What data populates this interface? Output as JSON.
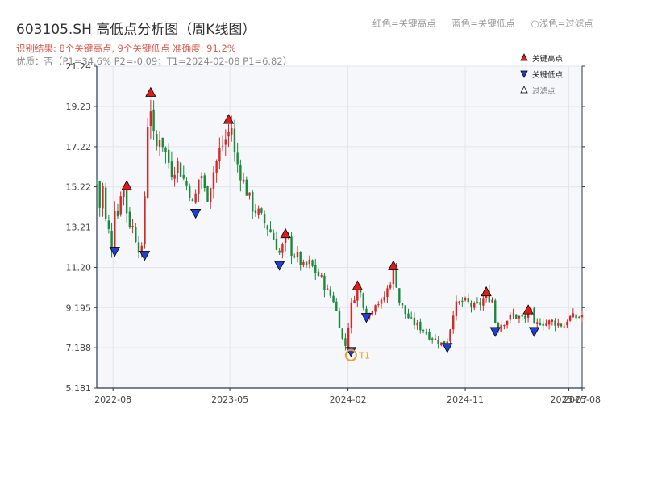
{
  "header": {
    "title": "603105.SH 高低点分析图（周K线图）",
    "summary": "识别结果: 8个关键高点, 9个关键低点   准确度: 91.2%",
    "quality": "优质：否（P1=34.6%  P2=-0.09；T1=2024-02-08 P1=6.82）",
    "legend_top": [
      "红色=关键高点",
      "蓝色=关键低点",
      "○浅色=过滤点"
    ]
  },
  "colors": {
    "up": "#d62728",
    "down": "#1a8a3a",
    "high_marker": "#e31a1c",
    "low_marker": "#1f3fd6",
    "t1": "#f0a020",
    "plot_bg": "#f5f7fa",
    "axis": "#2a3a4a"
  },
  "chart_data": {
    "type": "candlestick",
    "title": "603105.SH 高低点分析图（周K线图）",
    "x_range": [
      "2022-06-24",
      "2025-08-01"
    ],
    "ylim": [
      5.181,
      21.24
    ],
    "y_ticks": [
      "5.181",
      "7.188",
      "9.195",
      "11.20",
      "13.21",
      "15.22",
      "17.22",
      "19.23",
      "21.24"
    ],
    "x_ticks": [
      {
        "label": "2022-08",
        "date": "2022-08-01"
      },
      {
        "label": "2023-05",
        "date": "2023-05-01"
      },
      {
        "label": "2024-02",
        "date": "2024-02-01"
      },
      {
        "label": "2024-11",
        "date": "2024-11-01"
      },
      {
        "label": "2025-07",
        "date": "2025-07-01"
      },
      {
        "label": "2025-08",
        "date": "2025-08-01"
      }
    ],
    "anchors": [
      [
        "2022-06-24",
        15.5
      ],
      [
        "2022-07-01",
        14.2
      ],
      [
        "2022-07-08",
        15.2
      ],
      [
        "2022-07-15",
        13.5
      ],
      [
        "2022-07-22",
        13.0
      ],
      [
        "2022-07-29",
        12.3
      ],
      [
        "2022-08-05",
        14.3
      ],
      [
        "2022-08-12",
        13.8
      ],
      [
        "2022-08-19",
        15.0
      ],
      [
        "2022-08-26",
        15.1
      ],
      [
        "2022-09-02",
        14.0
      ],
      [
        "2022-09-09",
        13.4
      ],
      [
        "2022-09-16",
        13.2
      ],
      [
        "2022-09-23",
        12.7
      ],
      [
        "2022-09-30",
        12.2
      ],
      [
        "2022-10-07",
        12.0
      ],
      [
        "2022-10-14",
        14.8
      ],
      [
        "2022-10-21",
        18.4
      ],
      [
        "2022-10-28",
        19.2
      ],
      [
        "2022-11-04",
        17.6
      ],
      [
        "2022-11-11",
        17.2
      ],
      [
        "2022-11-18",
        17.8
      ],
      [
        "2022-11-25",
        17.4
      ],
      [
        "2022-12-02",
        16.9
      ],
      [
        "2022-12-16",
        16.0
      ],
      [
        "2022-12-30",
        16.4
      ],
      [
        "2023-01-13",
        15.6
      ],
      [
        "2023-01-27",
        15.0
      ],
      [
        "2023-02-03",
        14.3
      ],
      [
        "2023-02-10",
        14.8
      ],
      [
        "2023-02-17",
        15.6
      ],
      [
        "2023-02-24",
        15.8
      ],
      [
        "2023-03-03",
        15.0
      ],
      [
        "2023-03-10",
        14.8
      ],
      [
        "2023-03-24",
        16.0
      ],
      [
        "2023-04-07",
        17.0
      ],
      [
        "2023-04-21",
        17.6
      ],
      [
        "2023-05-05",
        18.2
      ],
      [
        "2023-05-12",
        16.8
      ],
      [
        "2023-05-26",
        15.9
      ],
      [
        "2023-06-09",
        15.0
      ],
      [
        "2023-06-23",
        14.2
      ],
      [
        "2023-07-07",
        13.9
      ],
      [
        "2023-07-21",
        13.4
      ],
      [
        "2023-08-04",
        13.0
      ],
      [
        "2023-08-18",
        12.3
      ],
      [
        "2023-08-25",
        11.9
      ],
      [
        "2023-09-01",
        12.2
      ],
      [
        "2023-09-08",
        12.7
      ],
      [
        "2023-09-15",
        12.5
      ],
      [
        "2023-09-22",
        12.0
      ],
      [
        "2023-10-06",
        11.7
      ],
      [
        "2023-10-20",
        11.2
      ],
      [
        "2023-11-03",
        11.4
      ],
      [
        "2023-11-17",
        11.0
      ],
      [
        "2023-12-01",
        10.6
      ],
      [
        "2023-12-15",
        10.0
      ],
      [
        "2023-12-29",
        9.6
      ],
      [
        "2024-01-05",
        9.0
      ],
      [
        "2024-01-12",
        8.4
      ],
      [
        "2024-01-19",
        7.6
      ],
      [
        "2024-01-26",
        7.3
      ],
      [
        "2024-02-02",
        8.3
      ],
      [
        "2024-02-09",
        9.3
      ],
      [
        "2024-02-16",
        9.8
      ],
      [
        "2024-02-23",
        10.1
      ],
      [
        "2024-03-01",
        9.9
      ],
      [
        "2024-03-08",
        9.4
      ],
      [
        "2024-03-15",
        8.8
      ],
      [
        "2024-03-22",
        8.9
      ],
      [
        "2024-03-29",
        9.2
      ],
      [
        "2024-04-05",
        9.5
      ],
      [
        "2024-04-19",
        9.4
      ],
      [
        "2024-05-03",
        10.1
      ],
      [
        "2024-05-17",
        11.0
      ],
      [
        "2024-05-24",
        10.4
      ],
      [
        "2024-05-31",
        9.5
      ],
      [
        "2024-06-14",
        8.9
      ],
      [
        "2024-06-28",
        8.5
      ],
      [
        "2024-07-12",
        8.3
      ],
      [
        "2024-07-26",
        8.1
      ],
      [
        "2024-08-09",
        7.8
      ],
      [
        "2024-08-23",
        7.6
      ],
      [
        "2024-09-06",
        7.4
      ],
      [
        "2024-09-20",
        7.6
      ],
      [
        "2024-09-27",
        8.2
      ],
      [
        "2024-10-04",
        9.0
      ],
      [
        "2024-10-11",
        9.3
      ],
      [
        "2024-10-25",
        9.5
      ],
      [
        "2024-11-08",
        9.4
      ],
      [
        "2024-11-22",
        9.2
      ],
      [
        "2024-12-06",
        9.4
      ],
      [
        "2024-12-20",
        9.8
      ],
      [
        "2025-01-03",
        9.6
      ],
      [
        "2025-01-10",
        8.5
      ],
      [
        "2025-01-17",
        8.2
      ],
      [
        "2025-01-24",
        8.4
      ],
      [
        "2025-02-07",
        8.6
      ],
      [
        "2025-02-21",
        8.8
      ],
      [
        "2025-03-07",
        8.7
      ],
      [
        "2025-03-21",
        8.6
      ],
      [
        "2025-03-28",
        9.1
      ],
      [
        "2025-04-04",
        8.9
      ],
      [
        "2025-04-11",
        8.2
      ],
      [
        "2025-04-25",
        8.5
      ],
      [
        "2025-05-09",
        8.4
      ],
      [
        "2025-05-23",
        8.5
      ],
      [
        "2025-06-06",
        8.4
      ],
      [
        "2025-06-20",
        8.3
      ],
      [
        "2025-06-27",
        8.6
      ],
      [
        "2025-07-04",
        8.7
      ],
      [
        "2025-07-18",
        8.7
      ],
      [
        "2025-08-01",
        8.8
      ]
    ],
    "key_highs": [
      {
        "date": "2022-09-02",
        "value": 15.2
      },
      {
        "date": "2022-10-28",
        "value": 19.85
      },
      {
        "date": "2023-04-28",
        "value": 18.5
      },
      {
        "date": "2023-09-08",
        "value": 12.8
      },
      {
        "date": "2024-02-23",
        "value": 10.2
      },
      {
        "date": "2024-05-17",
        "value": 11.2
      },
      {
        "date": "2024-12-20",
        "value": 9.9
      },
      {
        "date": "2025-03-28",
        "value": 9.0
      }
    ],
    "key_lows": [
      {
        "date": "2022-08-05",
        "value": 12.0
      },
      {
        "date": "2022-10-14",
        "value": 11.8
      },
      {
        "date": "2023-02-10",
        "value": 13.9
      },
      {
        "date": "2023-08-25",
        "value": 11.3
      },
      {
        "date": "2024-02-08",
        "value": 7.0
      },
      {
        "date": "2024-03-15",
        "value": 8.7
      },
      {
        "date": "2024-09-20",
        "value": 7.2
      },
      {
        "date": "2025-01-10",
        "value": 8.0
      },
      {
        "date": "2025-04-11",
        "value": 8.0
      }
    ],
    "t1": {
      "label": "T1",
      "date": "2024-02-08",
      "value": 6.82
    },
    "legend": [
      "关键高点",
      "关键低点",
      "过滤点"
    ],
    "legend_position": "top-right",
    "grid": true
  }
}
